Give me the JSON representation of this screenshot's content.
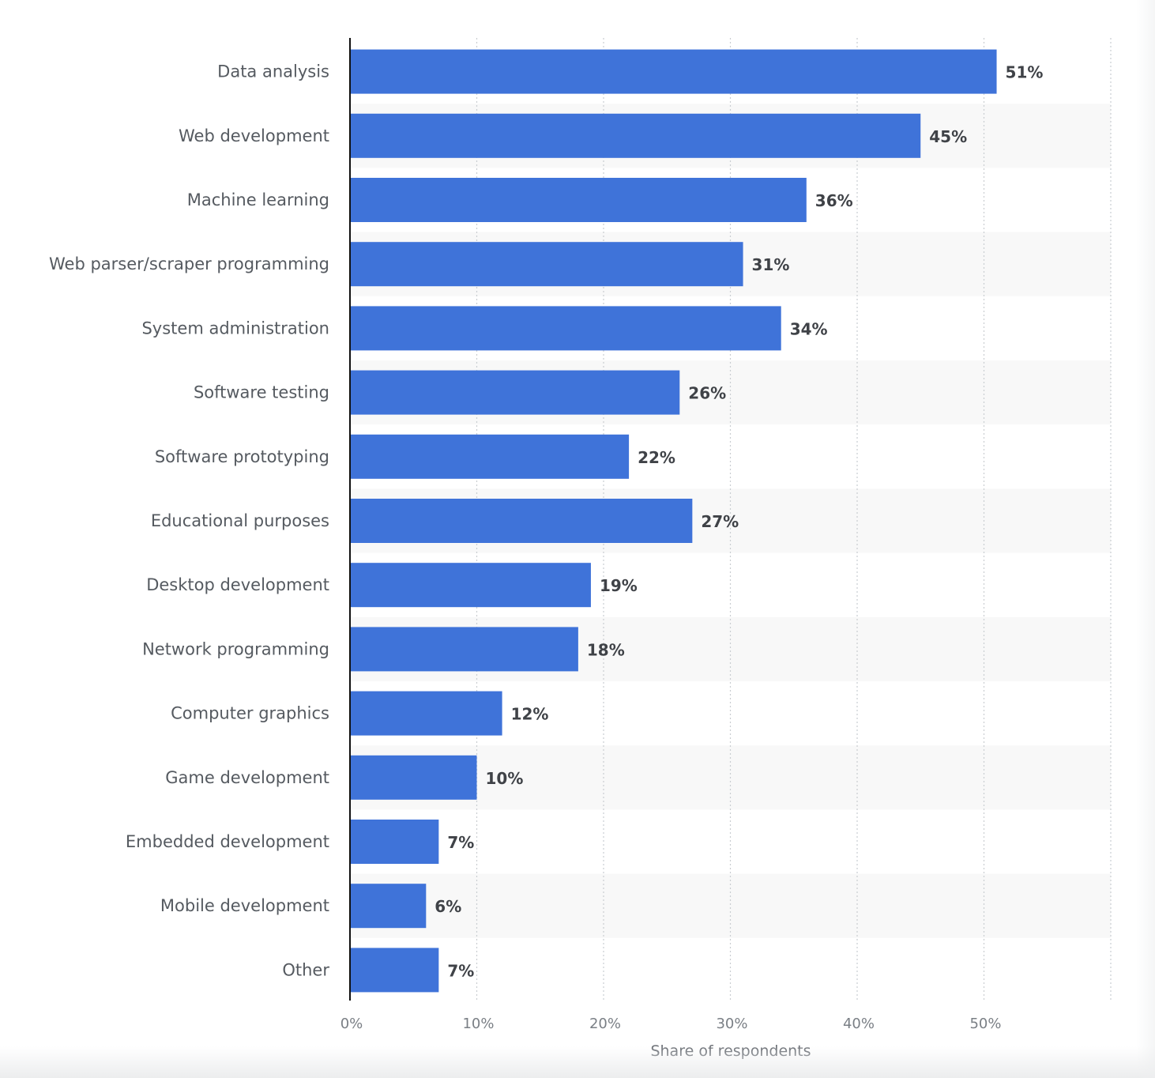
{
  "chart_data": {
    "type": "bar",
    "orientation": "horizontal",
    "categories": [
      "Data analysis",
      "Web development",
      "Machine learning",
      "Web parser/scraper programming",
      "System administration",
      "Software testing",
      "Software prototyping",
      "Educational purposes",
      "Desktop development",
      "Network programming",
      "Computer graphics",
      "Game development",
      "Embedded development",
      "Mobile development",
      "Other"
    ],
    "values": [
      51,
      45,
      36,
      31,
      34,
      26,
      22,
      27,
      19,
      18,
      12,
      10,
      7,
      6,
      7
    ],
    "value_labels": [
      "51%",
      "45%",
      "36%",
      "31%",
      "34%",
      "26%",
      "22%",
      "27%",
      "19%",
      "18%",
      "12%",
      "10%",
      "7%",
      "6%",
      "7%"
    ],
    "xlabel": "Share of respondents",
    "xlim": [
      0,
      60
    ],
    "x_ticks": [
      0,
      10,
      20,
      30,
      40,
      50
    ],
    "x_tick_labels": [
      "0%",
      "10%",
      "20%",
      "30%",
      "40%",
      "50%"
    ],
    "grid": true,
    "bar_color": "#3f73d9",
    "alt_row_color": "#f8f8f8",
    "grid_color": "#c9cdd1",
    "axis_color": "#111111"
  }
}
